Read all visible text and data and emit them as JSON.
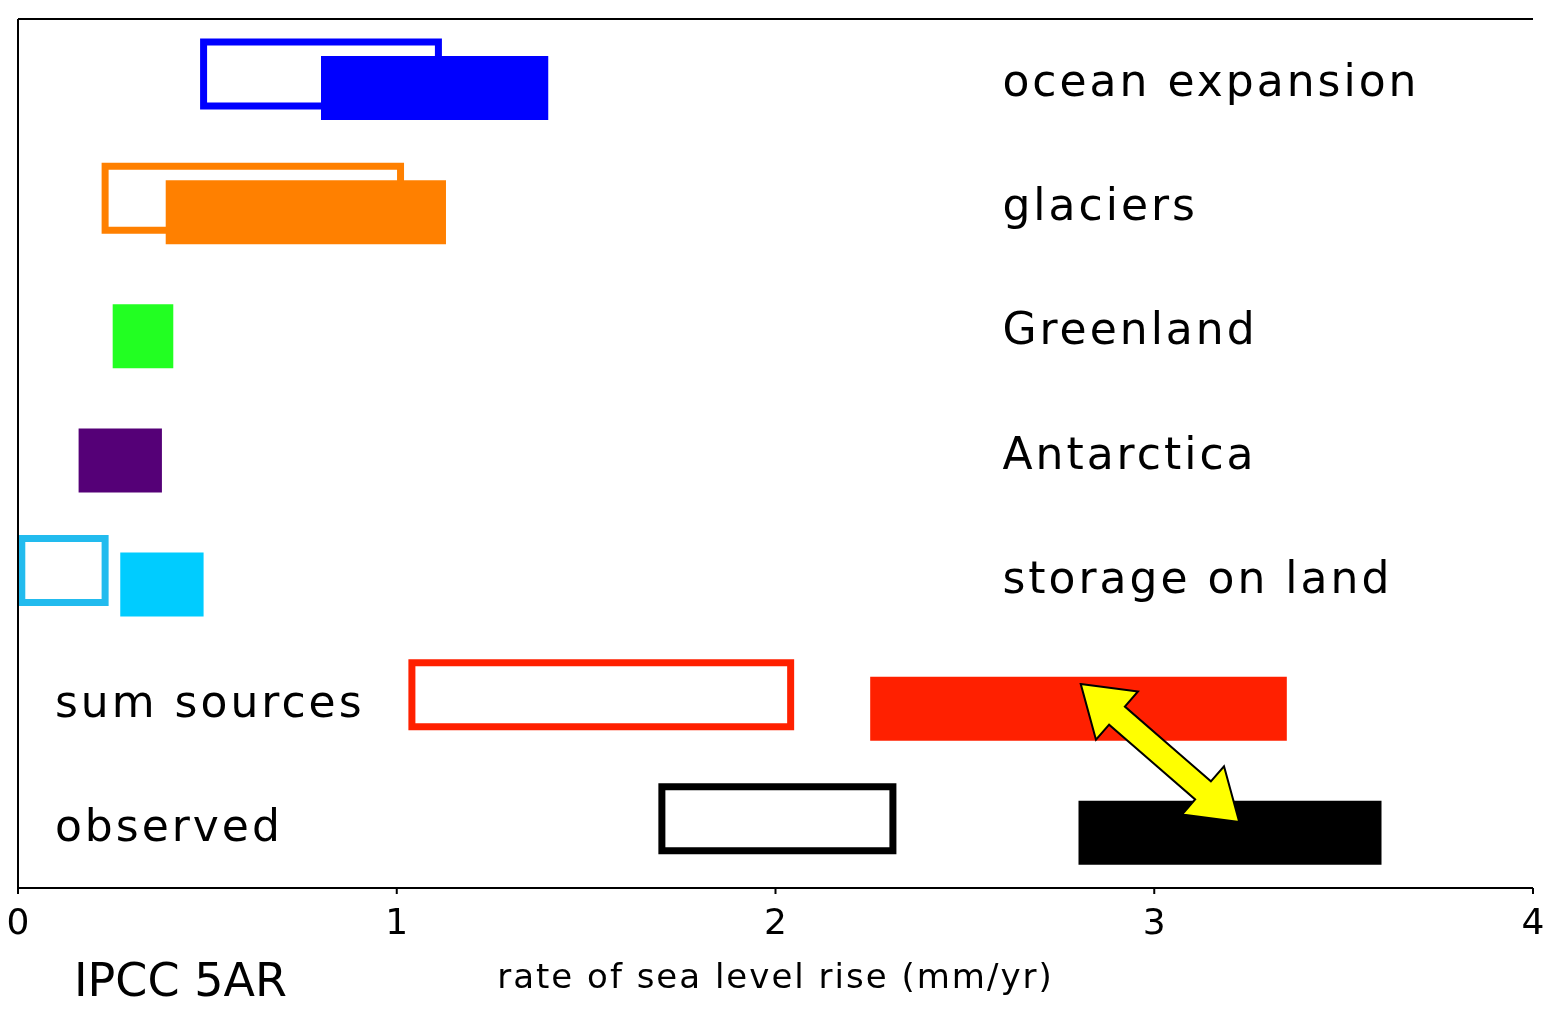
{
  "chart_data": {
    "type": "bar",
    "orientation": "horizontal",
    "categories": [
      "ocean expansion",
      "glaciers",
      "Greenland",
      "Antarctica",
      "storage on land",
      "sum sources",
      "observed"
    ],
    "series": [
      {
        "colors": [
          "#0000ff",
          "#ff8000",
          "#22ff22",
          "#550077",
          "#22bbee",
          "#ff2000",
          "#000000"
        ],
        "base": [
          0.49,
          0.23,
          null,
          null,
          0.01,
          1.04,
          1.7
        ],
        "values": [
          0.62,
          0.78,
          null,
          null,
          0.22,
          1.0,
          0.61
        ]
      },
      {
        "colors": [
          "#0000ff",
          "#ff8000",
          "#22ff22",
          "#550077",
          "#00ccff",
          "#ff2000",
          "#000000"
        ],
        "base": [
          0.8,
          0.39,
          0.25,
          0.16,
          0.27,
          2.25,
          2.8
        ],
        "values": [
          0.6,
          0.74,
          0.16,
          0.22,
          0.22,
          1.1,
          0.8
        ]
      }
    ],
    "xlim": [
      0,
      4
    ],
    "xticks": [
      0,
      1,
      2,
      3,
      4
    ],
    "xlabel": "rate of sea level rise (mm/yr)",
    "annotations": [
      "IPCC 5AR"
    ]
  }
}
